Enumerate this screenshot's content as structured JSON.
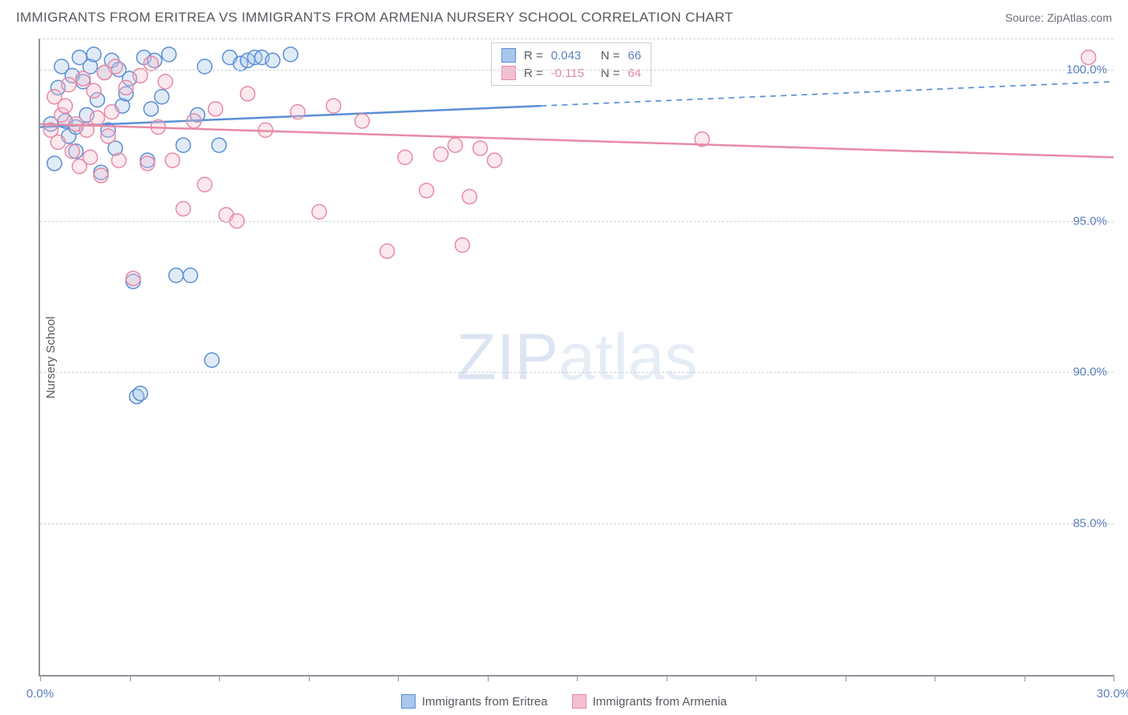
{
  "header": {
    "title": "IMMIGRANTS FROM ERITREA VS IMMIGRANTS FROM ARMENIA NURSERY SCHOOL CORRELATION CHART",
    "source": "Source: ZipAtlas.com"
  },
  "chart": {
    "type": "scatter",
    "ylabel": "Nursery School",
    "xlim": [
      0,
      30
    ],
    "ylim": [
      80,
      101
    ],
    "xticks": [
      0,
      2.5,
      5,
      7.5,
      10,
      12.5,
      15,
      17.5,
      20,
      22.5,
      25,
      27.5,
      30
    ],
    "xtick_labels": {
      "0": "0.0%",
      "30": "30.0%"
    },
    "ygrid": [
      85,
      90,
      95,
      100
    ],
    "ytick_labels": {
      "85": "85.0%",
      "90": "90.0%",
      "95": "95.0%",
      "100": "100.0%"
    },
    "grid_color": "#d0d4da",
    "axis_color": "#8f949c",
    "label_color": "#5b7fbf",
    "background_color": "#ffffff",
    "marker_radius": 9,
    "marker_stroke_width": 1.5,
    "marker_fill_opacity": 0.35,
    "regression_line_width": 2.5,
    "series": [
      {
        "name": "Immigrants from Eritrea",
        "color_stroke": "#5b8fd6",
        "color_fill": "#a9c6ec",
        "R": "0.043",
        "N": "66",
        "regression": {
          "x1": 0,
          "y1": 98.1,
          "x2": 30,
          "y2": 99.6,
          "solid_until_x": 14
        },
        "points": [
          [
            0.3,
            98.2
          ],
          [
            0.4,
            96.9
          ],
          [
            0.5,
            99.4
          ],
          [
            0.6,
            100.1
          ],
          [
            0.7,
            98.3
          ],
          [
            0.8,
            97.8
          ],
          [
            0.9,
            99.8
          ],
          [
            1.0,
            98.1
          ],
          [
            1.0,
            97.3
          ],
          [
            1.1,
            100.4
          ],
          [
            1.2,
            99.6
          ],
          [
            1.3,
            98.5
          ],
          [
            1.4,
            100.1
          ],
          [
            1.5,
            100.5
          ],
          [
            1.6,
            99.0
          ],
          [
            1.7,
            96.6
          ],
          [
            1.8,
            99.9
          ],
          [
            1.9,
            98.0
          ],
          [
            2.0,
            100.3
          ],
          [
            2.1,
            97.4
          ],
          [
            2.2,
            100.0
          ],
          [
            2.3,
            98.8
          ],
          [
            2.4,
            99.2
          ],
          [
            2.5,
            99.7
          ],
          [
            2.6,
            93.0
          ],
          [
            2.7,
            89.2
          ],
          [
            2.8,
            89.3
          ],
          [
            2.9,
            100.4
          ],
          [
            3.0,
            97.0
          ],
          [
            3.1,
            98.7
          ],
          [
            3.2,
            100.3
          ],
          [
            3.4,
            99.1
          ],
          [
            3.6,
            100.5
          ],
          [
            3.8,
            93.2
          ],
          [
            4.0,
            97.5
          ],
          [
            4.2,
            93.2
          ],
          [
            4.4,
            98.5
          ],
          [
            4.6,
            100.1
          ],
          [
            4.8,
            90.4
          ],
          [
            5.0,
            97.5
          ],
          [
            5.3,
            100.4
          ],
          [
            5.6,
            100.2
          ],
          [
            5.8,
            100.3
          ],
          [
            6.0,
            100.4
          ],
          [
            6.2,
            100.4
          ],
          [
            6.5,
            100.3
          ],
          [
            7.0,
            100.5
          ]
        ]
      },
      {
        "name": "Immigrants from Armenia",
        "color_stroke": "#e88aa5",
        "color_fill": "#f4c0cf",
        "R": "-0.115",
        "N": "64",
        "regression": {
          "x1": 0,
          "y1": 98.2,
          "x2": 30,
          "y2": 97.1,
          "solid_until_x": 30
        },
        "points": [
          [
            0.3,
            98.0
          ],
          [
            0.4,
            99.1
          ],
          [
            0.5,
            97.6
          ],
          [
            0.6,
            98.5
          ],
          [
            0.7,
            98.8
          ],
          [
            0.8,
            99.5
          ],
          [
            0.9,
            97.3
          ],
          [
            1.0,
            98.2
          ],
          [
            1.1,
            96.8
          ],
          [
            1.2,
            99.7
          ],
          [
            1.3,
            98.0
          ],
          [
            1.4,
            97.1
          ],
          [
            1.5,
            99.3
          ],
          [
            1.6,
            98.4
          ],
          [
            1.7,
            96.5
          ],
          [
            1.8,
            99.9
          ],
          [
            1.9,
            97.8
          ],
          [
            2.0,
            98.6
          ],
          [
            2.1,
            100.1
          ],
          [
            2.2,
            97.0
          ],
          [
            2.4,
            99.4
          ],
          [
            2.6,
            93.1
          ],
          [
            2.8,
            99.8
          ],
          [
            3.0,
            96.9
          ],
          [
            3.1,
            100.2
          ],
          [
            3.3,
            98.1
          ],
          [
            3.5,
            99.6
          ],
          [
            3.7,
            97.0
          ],
          [
            4.0,
            95.4
          ],
          [
            4.3,
            98.3
          ],
          [
            4.6,
            96.2
          ],
          [
            4.9,
            98.7
          ],
          [
            5.2,
            95.2
          ],
          [
            5.5,
            95.0
          ],
          [
            5.8,
            99.2
          ],
          [
            6.3,
            98.0
          ],
          [
            7.2,
            98.6
          ],
          [
            7.8,
            95.3
          ],
          [
            8.2,
            98.8
          ],
          [
            9.0,
            98.3
          ],
          [
            9.7,
            94.0
          ],
          [
            10.2,
            97.1
          ],
          [
            10.8,
            96.0
          ],
          [
            11.2,
            97.2
          ],
          [
            11.6,
            97.5
          ],
          [
            11.8,
            94.2
          ],
          [
            12.0,
            95.8
          ],
          [
            12.3,
            97.4
          ],
          [
            12.7,
            97.0
          ],
          [
            18.5,
            97.7
          ],
          [
            29.3,
            100.4
          ]
        ]
      }
    ]
  },
  "correlation_box": {
    "r_label": "R =",
    "n_label": "N ="
  },
  "legend": {
    "items": [
      "Immigrants from Eritrea",
      "Immigrants from Armenia"
    ]
  },
  "watermark": {
    "zip": "ZIP",
    "atlas": "atlas"
  }
}
